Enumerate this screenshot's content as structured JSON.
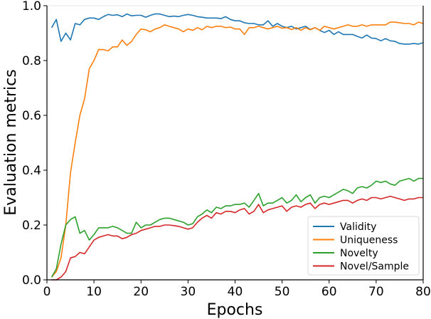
{
  "chart_data": {
    "type": "line",
    "title": "",
    "xlabel": "Epochs",
    "ylabel": "Evaluation metrics",
    "xlim": [
      0,
      80
    ],
    "ylim": [
      0.0,
      1.0
    ],
    "xticks": [
      "0",
      "10",
      "20",
      "30",
      "40",
      "50",
      "60",
      "70",
      "80"
    ],
    "yticks": [
      "0.0",
      "0.2",
      "0.4",
      "0.6",
      "0.8",
      "1.0"
    ],
    "grid": false,
    "legend_position": "lower right",
    "x": [
      1,
      2,
      3,
      4,
      5,
      6,
      7,
      8,
      9,
      10,
      11,
      12,
      13,
      14,
      15,
      16,
      17,
      18,
      19,
      20,
      21,
      22,
      23,
      24,
      25,
      26,
      27,
      28,
      29,
      30,
      31,
      32,
      33,
      34,
      35,
      36,
      37,
      38,
      39,
      40,
      41,
      42,
      43,
      44,
      45,
      46,
      47,
      48,
      49,
      50,
      51,
      52,
      53,
      54,
      55,
      56,
      57,
      58,
      59,
      60,
      61,
      62,
      63,
      64,
      65,
      66,
      67,
      68,
      69,
      70,
      71,
      72,
      73,
      74,
      75,
      76,
      77,
      78,
      79,
      80
    ],
    "series": [
      {
        "name": "Validity",
        "color": "#1f77b4",
        "values": [
          0.92,
          0.95,
          0.87,
          0.9,
          0.875,
          0.935,
          0.93,
          0.95,
          0.955,
          0.955,
          0.95,
          0.96,
          0.968,
          0.965,
          0.967,
          0.96,
          0.97,
          0.963,
          0.965,
          0.965,
          0.958,
          0.965,
          0.97,
          0.97,
          0.965,
          0.96,
          0.962,
          0.96,
          0.965,
          0.968,
          0.965,
          0.96,
          0.958,
          0.955,
          0.955,
          0.955,
          0.953,
          0.96,
          0.95,
          0.945,
          0.945,
          0.938,
          0.935,
          0.935,
          0.93,
          0.93,
          0.945,
          0.925,
          0.935,
          0.925,
          0.92,
          0.925,
          0.915,
          0.92,
          0.925,
          0.913,
          0.92,
          0.91,
          0.902,
          0.91,
          0.895,
          0.905,
          0.895,
          0.895,
          0.895,
          0.888,
          0.882,
          0.893,
          0.882,
          0.88,
          0.872,
          0.88,
          0.872,
          0.87,
          0.862,
          0.86,
          0.86,
          0.862,
          0.86,
          0.865
        ]
      },
      {
        "name": "Uniqueness",
        "color": "#ff7f0e",
        "values": [
          0.01,
          0.03,
          0.08,
          0.2,
          0.39,
          0.5,
          0.6,
          0.66,
          0.77,
          0.8,
          0.84,
          0.84,
          0.835,
          0.85,
          0.85,
          0.875,
          0.855,
          0.87,
          0.895,
          0.915,
          0.912,
          0.905,
          0.915,
          0.92,
          0.93,
          0.925,
          0.92,
          0.915,
          0.905,
          0.915,
          0.91,
          0.92,
          0.912,
          0.925,
          0.92,
          0.925,
          0.925,
          0.92,
          0.922,
          0.915,
          0.915,
          0.895,
          0.92,
          0.92,
          0.925,
          0.92,
          0.915,
          0.92,
          0.925,
          0.918,
          0.92,
          0.913,
          0.92,
          0.91,
          0.92,
          0.912,
          0.92,
          0.91,
          0.925,
          0.92,
          0.915,
          0.92,
          0.925,
          0.93,
          0.925,
          0.925,
          0.93,
          0.925,
          0.93,
          0.93,
          0.93,
          0.93,
          0.94,
          0.94,
          0.938,
          0.935,
          0.935,
          0.93,
          0.94,
          0.935
        ]
      },
      {
        "name": "Novelty",
        "color": "#2ca02c",
        "values": [
          0.01,
          0.04,
          0.13,
          0.2,
          0.22,
          0.23,
          0.17,
          0.18,
          0.145,
          0.165,
          0.19,
          0.19,
          0.19,
          0.195,
          0.19,
          0.18,
          0.17,
          0.17,
          0.21,
          0.19,
          0.2,
          0.2,
          0.21,
          0.22,
          0.225,
          0.225,
          0.22,
          0.215,
          0.21,
          0.2,
          0.205,
          0.23,
          0.24,
          0.255,
          0.245,
          0.265,
          0.26,
          0.27,
          0.27,
          0.275,
          0.275,
          0.28,
          0.265,
          0.29,
          0.315,
          0.27,
          0.28,
          0.28,
          0.29,
          0.3,
          0.28,
          0.29,
          0.31,
          0.285,
          0.3,
          0.31,
          0.28,
          0.3,
          0.305,
          0.3,
          0.31,
          0.32,
          0.33,
          0.325,
          0.315,
          0.335,
          0.34,
          0.335,
          0.345,
          0.36,
          0.355,
          0.36,
          0.35,
          0.345,
          0.36,
          0.365,
          0.37,
          0.36,
          0.37,
          0.37
        ]
      },
      {
        "name": "Novel/Sample",
        "color": "#d62728",
        "values": [
          0.0,
          0.0,
          0.01,
          0.03,
          0.08,
          0.085,
          0.1,
          0.095,
          0.12,
          0.145,
          0.155,
          0.16,
          0.165,
          0.16,
          0.16,
          0.15,
          0.155,
          0.165,
          0.17,
          0.18,
          0.185,
          0.19,
          0.195,
          0.195,
          0.2,
          0.2,
          0.198,
          0.195,
          0.19,
          0.185,
          0.19,
          0.21,
          0.225,
          0.235,
          0.225,
          0.245,
          0.24,
          0.25,
          0.25,
          0.245,
          0.255,
          0.26,
          0.24,
          0.25,
          0.275,
          0.245,
          0.255,
          0.26,
          0.265,
          0.27,
          0.25,
          0.265,
          0.27,
          0.265,
          0.275,
          0.28,
          0.26,
          0.275,
          0.28,
          0.275,
          0.28,
          0.285,
          0.29,
          0.29,
          0.28,
          0.29,
          0.295,
          0.29,
          0.3,
          0.3,
          0.295,
          0.3,
          0.305,
          0.3,
          0.295,
          0.29,
          0.295,
          0.295,
          0.3,
          0.3
        ]
      }
    ]
  },
  "axes": {
    "xlabel": "Epochs",
    "ylabel": "Evaluation metrics"
  },
  "legend": {
    "items": [
      {
        "label": "Validity",
        "color": "#1f77b4"
      },
      {
        "label": "Uniqueness",
        "color": "#ff7f0e"
      },
      {
        "label": "Novelty",
        "color": "#2ca02c"
      },
      {
        "label": "Novel/Sample",
        "color": "#d62728"
      }
    ]
  }
}
